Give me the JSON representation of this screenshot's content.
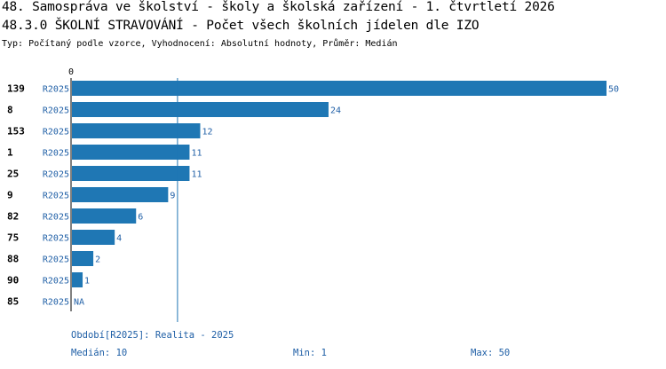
{
  "header": {
    "title": "48. Samospráva ve školství - školy a školská zařízení - 1. čtvrtletí 2026",
    "subtitle": "48.3.0 ŠKOLNÍ STRAVOVÁNÍ - Počet všech školních jídelen dle IZO",
    "type_line": "Typ: Počítaný podle vzorce, Vyhodnocení: Absolutní hodnoty, Průměr: Medián"
  },
  "footer": {
    "period": "Období[R2025]: Realita - 2025",
    "median": "Medián: 10",
    "min": "Min: 1",
    "max": "Max: 50"
  },
  "chart_data": {
    "type": "bar",
    "orientation": "horizontal",
    "x_axis_zero_label": "0",
    "xlim": [
      0,
      50
    ],
    "median": 10,
    "colors": {
      "bar": "#1f77b4",
      "label": "#1f5fa6",
      "median_line": "#1f77b4"
    },
    "series_label": "R2025",
    "categories": [
      "139",
      "8",
      "153",
      "1",
      "25",
      "9",
      "82",
      "75",
      "88",
      "90",
      "85"
    ],
    "values": [
      50,
      24,
      12,
      11,
      11,
      9,
      6,
      4,
      2,
      1,
      null
    ],
    "value_labels": [
      "50",
      "24",
      "12",
      "11",
      "11",
      "9",
      "6",
      "4",
      "2",
      "1",
      "NA"
    ]
  }
}
